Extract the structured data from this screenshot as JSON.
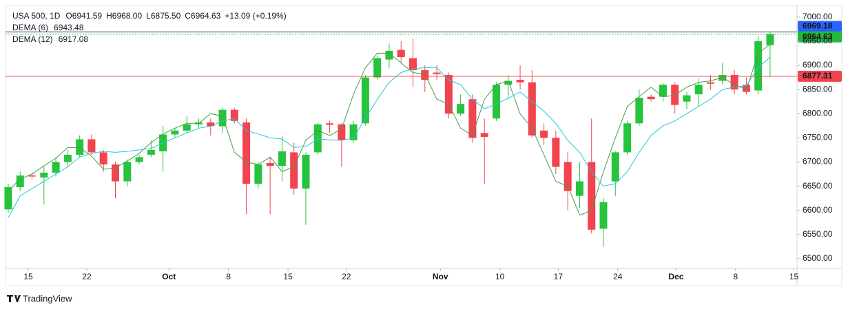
{
  "chart_data": {
    "type": "candlestick",
    "title": "USA 500, 1D",
    "ohlc_header": [
      {
        "key": "O",
        "text": "6941.59"
      },
      {
        "key": "H",
        "text": "6968.00"
      },
      {
        "key": "L",
        "text": "6875.50"
      },
      {
        "key": "C",
        "text": "6964.63"
      }
    ],
    "change": "+13.09 (+0.19%)",
    "up_color": "#26c43c",
    "down_color": "#f2434f",
    "candles": {
      "open": [
        6602,
        6648,
        6672,
        6668,
        6678,
        6700,
        6715,
        6747,
        6720,
        6695,
        6660,
        6700,
        6715,
        6722,
        6757,
        6765,
        6778,
        6782,
        6774,
        6808,
        6782,
        6655,
        6698,
        6692,
        6720,
        6645,
        6720,
        6780,
        6778,
        6745,
        6780,
        6875,
        6912,
        6932,
        6915,
        6890,
        6885,
        6880,
        6800,
        6830,
        6760,
        6790,
        6860,
        6870,
        6865,
        6765,
        6750,
        6700,
        6630,
        6700,
        6562,
        6660,
        6720,
        6780,
        6835,
        6835,
        6860,
        6825,
        6840,
        6865,
        6868,
        6880,
        6860,
        6848,
        6941.59
      ],
      "high": [
        6655,
        6680,
        6678,
        6690,
        6710,
        6725,
        6755,
        6757,
        6725,
        6700,
        6705,
        6715,
        6745,
        6775,
        6770,
        6795,
        6790,
        6790,
        6812,
        6812,
        6790,
        6700,
        6710,
        6755,
        6740,
        6720,
        6780,
        6785,
        6780,
        6785,
        6880,
        6920,
        6945,
        6950,
        6955,
        6900,
        6900,
        6885,
        6840,
        6840,
        6790,
        6865,
        6880,
        6900,
        6890,
        6780,
        6765,
        6720,
        6700,
        6790,
        6625,
        6722,
        6785,
        6850,
        6840,
        6863,
        6865,
        6845,
        6872,
        6880,
        6905,
        6890,
        6875,
        6960,
        6968
      ],
      "low": [
        6595,
        6640,
        6665,
        6612,
        6670,
        6690,
        6710,
        6715,
        6680,
        6625,
        6650,
        6695,
        6710,
        6680,
        6750,
        6760,
        6770,
        6755,
        6760,
        6780,
        6592,
        6645,
        6592,
        6660,
        6632,
        6570,
        6715,
        6760,
        6690,
        6740,
        6775,
        6870,
        6895,
        6905,
        6855,
        6845,
        6870,
        6790,
        6795,
        6740,
        6655,
        6785,
        6830,
        6850,
        6750,
        6735,
        6675,
        6600,
        6605,
        6552,
        6525,
        6630,
        6715,
        6775,
        6825,
        6825,
        6800,
        6810,
        6815,
        6850,
        6860,
        6840,
        6840,
        6840,
        6875.5
      ],
      "close": [
        6648,
        6672,
        6670,
        6678,
        6700,
        6715,
        6747,
        6720,
        6695,
        6660,
        6700,
        6710,
        6725,
        6757,
        6765,
        6778,
        6782,
        6774,
        6808,
        6785,
        6655,
        6695,
        6692,
        6722,
        6645,
        6715,
        6778,
        6777,
        6745,
        6778,
        6875,
        6915,
        6930,
        6917,
        6890,
        6870,
        6882,
        6800,
        6820,
        6750,
        6752,
        6860,
        6868,
        6865,
        6755,
        6750,
        6690,
        6640,
        6660,
        6560,
        6617,
        6720,
        6780,
        6833,
        6830,
        6860,
        6818,
        6838,
        6860,
        6862,
        6880,
        6850,
        6845,
        6950,
        6964.63
      ]
    },
    "series": [
      {
        "name": "DEMA (6)",
        "color": "#43a047",
        "values": [
          6640,
          6665,
          6675,
          6692,
          6708,
          6730,
          6730,
          6712,
          6685,
          6688,
          6702,
          6718,
          6740,
          6758,
          6770,
          6780,
          6780,
          6800,
          6795,
          6720,
          6700,
          6695,
          6710,
          6680,
          6690,
          6745,
          6765,
          6755,
          6768,
          6840,
          6895,
          6925,
          6925,
          6905,
          6885,
          6882,
          6830,
          6820,
          6770,
          6755,
          6830,
          6860,
          6868,
          6800,
          6770,
          6715,
          6660,
          6650,
          6590,
          6600,
          6680,
          6750,
          6815,
          6835,
          6855,
          6835,
          6838,
          6855,
          6865,
          6868,
          6875,
          6860,
          6850,
          6925,
          6943.48
        ]
      },
      {
        "name": "DEMA (12)",
        "color": "#26c6da",
        "values": [
          6585,
          6630,
          6645,
          6660,
          6675,
          6690,
          6710,
          6718,
          6722,
          6720,
          6722,
          6725,
          6728,
          6740,
          6750,
          6760,
          6770,
          6774,
          6785,
          6790,
          6765,
          6758,
          6750,
          6748,
          6730,
          6732,
          6748,
          6746,
          6745,
          6750,
          6790,
          6830,
          6865,
          6885,
          6893,
          6895,
          6895,
          6870,
          6860,
          6830,
          6810,
          6820,
          6832,
          6845,
          6825,
          6805,
          6780,
          6745,
          6720,
          6680,
          6650,
          6655,
          6680,
          6720,
          6755,
          6775,
          6785,
          6800,
          6815,
          6830,
          6850,
          6855,
          6858,
          6895,
          6917.08
        ]
      }
    ],
    "price_lines": [
      {
        "value": 6969.18,
        "color": "#2962ff",
        "line": "#1f3b57"
      },
      {
        "value": 6964.63,
        "color": "#22b83a",
        "line": "#22b83a"
      },
      {
        "value": 6877.31,
        "color": "#f2434f",
        "line": "#f2434f"
      }
    ],
    "xlim": [
      -0.23,
      66.26
    ],
    "xticks": [
      {
        "value": 1.68,
        "label": "15"
      },
      {
        "value": 6.6,
        "label": "22"
      },
      {
        "value": 13.5,
        "label": "Oct"
      },
      {
        "value": 18.5,
        "label": "8"
      },
      {
        "value": 23.5,
        "label": "15"
      },
      {
        "value": 28.4,
        "label": "22"
      },
      {
        "value": 36.3,
        "label": "Nov"
      },
      {
        "value": 41.3,
        "label": "10"
      },
      {
        "value": 46.2,
        "label": "17"
      },
      {
        "value": 51.2,
        "label": "24"
      },
      {
        "value": 56.1,
        "label": "Dec"
      },
      {
        "value": 61.1,
        "label": "8"
      },
      {
        "value": 66.0,
        "label": "15"
      }
    ],
    "ylim": [
      6480,
      7021
    ],
    "yticks": [
      {
        "value": 6500,
        "label": "6500.00"
      },
      {
        "value": 6550,
        "label": "6550.00"
      },
      {
        "value": 6600,
        "label": "6600.00"
      },
      {
        "value": 6650,
        "label": "6650.00"
      },
      {
        "value": 6700,
        "label": "6700.00"
      },
      {
        "value": 6750,
        "label": "6750.00"
      },
      {
        "value": 6800,
        "label": "6800.00"
      },
      {
        "value": 6850,
        "label": "6850.00"
      },
      {
        "value": 6900,
        "label": "6900.00"
      },
      {
        "value": 6950,
        "label": "6950.00"
      },
      {
        "value": 7000,
        "label": "7000.00"
      }
    ],
    "footer": "TradingView"
  }
}
